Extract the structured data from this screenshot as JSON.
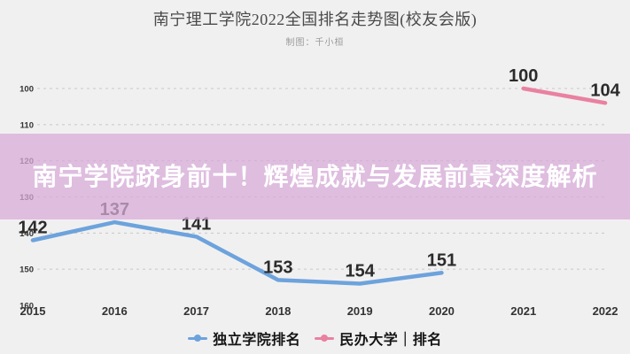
{
  "header": {
    "title": "南宁理工学院2022全国排名走势图(校友会版)",
    "subtitle": "制图：千小桓"
  },
  "banner": {
    "text": "南宁学院跻身前十！辉煌成就与发展前景深度解析"
  },
  "colors": {
    "background": "#f1f0f1",
    "banner": "#ddbfdf",
    "gridline": "#c7c7c7",
    "axis_text": "#333333",
    "value_label": "#2b2b2b",
    "series_blue": "#6da3dc",
    "series_pink": "#e981a1"
  },
  "legend": {
    "items": [
      {
        "label": "独立学院排名",
        "color": "#6da3dc"
      },
      {
        "label": "民办大学｜排名",
        "color": "#e981a1"
      }
    ]
  },
  "chart_data": {
    "type": "line",
    "title": "南宁理工学院2022全国排名走势图(校友会版)",
    "categories": [
      "2015",
      "2016",
      "2017",
      "2018",
      "2019",
      "2020",
      "2021",
      "2022"
    ],
    "series": [
      {
        "name": "独立学院排名",
        "color": "#6da3dc",
        "values": [
          142,
          137,
          141,
          153,
          154,
          151,
          null,
          null
        ]
      },
      {
        "name": "民办大学｜排名",
        "color": "#e981a1",
        "values": [
          null,
          null,
          null,
          null,
          null,
          null,
          100,
          104
        ]
      }
    ],
    "y_ticks": [
      100,
      110,
      120,
      130,
      140,
      150,
      160
    ],
    "y_axis_inverted": true,
    "ylim": [
      100,
      160
    ],
    "grid": true,
    "grid_style": "dashed",
    "legend_position": "bottom",
    "value_labels": true
  }
}
